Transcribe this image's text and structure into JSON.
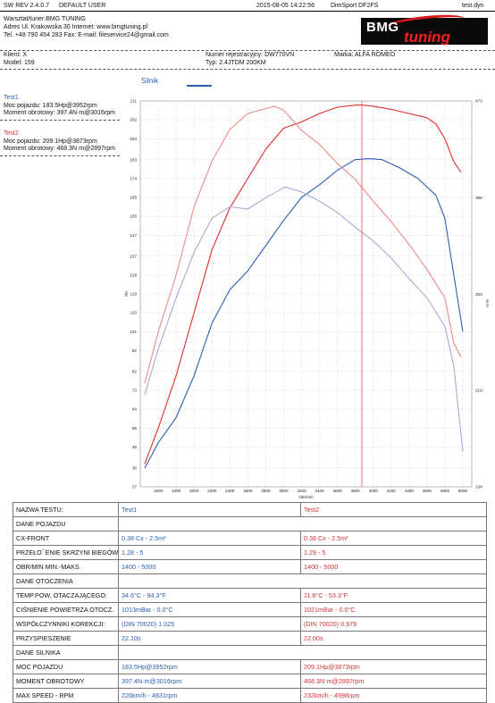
{
  "header": {
    "sw_rev": "SW REV 2.4.0.7",
    "user": "DEFAULT USER",
    "datetime": "2015-08-05 14:22:56",
    "dyno": "DimSport DF2FS",
    "file": "test.dyn",
    "workshop_line": "Warsztat/tuner:BMG TUNING",
    "address_line": "Adres Ul. Krakowska 30 Internet: www.bmgtuning.pl",
    "contact_line": "Tel. +48 790 454 283 Fax:  E-mail: fileservice24@gmail.com",
    "logo_main": "BMG",
    "logo_sub": "tuning"
  },
  "vehicle": {
    "client": "Klient: X",
    "model": "Model: 159",
    "reg": "Numer rejestracyjny: DW770VN",
    "type": "Typ: 2.4JTDM 200KM",
    "brand": "Marka: ALFA ROMEO"
  },
  "tab": {
    "label": "Silnik"
  },
  "tests": [
    {
      "name": "Test1",
      "power": "Moc pojazdu: 183.5Hp@3952rpm",
      "torque": "Moment obrotowy: 397.4N·m@3016rpm"
    },
    {
      "name": "Test2",
      "power": "Moc pojazdu: 209.1Hp@3873rpm",
      "torque": "Moment obrotowy: 468.3N·m@2897rpm"
    }
  ],
  "colors": {
    "test1": "#2a5fb4",
    "test2": "#e02c2c",
    "test1_torque": "#a9a9d6",
    "test2_torque": "#ee8a8a",
    "cursor": "#e85050"
  },
  "chart_data": {
    "type": "line",
    "xlabel": "Obr/min",
    "ylabel_left": "Hp",
    "ylabel_right": "N·m",
    "xlim": [
      1400,
      5100
    ],
    "x_ticks": [
      "1600",
      "1800",
      "2000",
      "2200",
      "2400",
      "2600",
      "2800",
      "3000",
      "3200",
      "3400",
      "3600",
      "3800",
      "4000",
      "4200",
      "4400",
      "4600",
      "4800",
      "5000"
    ],
    "ylim_left": [
      27,
      211
    ],
    "y_ticks_left": [
      "211",
      "202",
      "193",
      "183",
      "174",
      "165",
      "156",
      "147",
      "137",
      "128",
      "119",
      "110",
      "101",
      "92",
      "82",
      "73",
      "64",
      "55",
      "46",
      "36",
      "27"
    ],
    "ylim_right": [
      134,
      473
    ],
    "y_ticks_right": [
      "134",
      "219",
      "303",
      "388",
      "473"
    ],
    "cursor_rpm": 3873,
    "grid": true,
    "series": [
      {
        "name": "Test1",
        "quantity": "power",
        "x": [
          1450,
          1600,
          1800,
          2000,
          2200,
          2400,
          2600,
          2800,
          3000,
          3200,
          3400,
          3600,
          3800,
          3952,
          4100,
          4300,
          4500,
          4700,
          4800,
          4900,
          5000
        ],
        "y": [
          36,
          48,
          60,
          80,
          105,
          121,
          130,
          142,
          154,
          165,
          171,
          178,
          183,
          183.5,
          183,
          179,
          174,
          166,
          155,
          128,
          101
        ]
      },
      {
        "name": "Test2",
        "quantity": "power",
        "x": [
          1450,
          1600,
          1800,
          2000,
          2200,
          2400,
          2600,
          2800,
          3000,
          3200,
          3400,
          3600,
          3800,
          3873,
          4000,
          4200,
          4400,
          4600,
          4700,
          4800,
          4900,
          4980
        ],
        "y": [
          38,
          55,
          80,
          110,
          140,
          160,
          174,
          188,
          198,
          201,
          205,
          208,
          209,
          209.1,
          208.5,
          207,
          205,
          203,
          200,
          193,
          182,
          177
        ]
      },
      {
        "name": "Test1",
        "quantity": "torque",
        "x": [
          1450,
          1600,
          1800,
          2000,
          2200,
          2400,
          2600,
          2800,
          3016,
          3200,
          3400,
          3600,
          3800,
          4000,
          4200,
          4400,
          4600,
          4800,
          4900,
          5000
        ],
        "y": [
          215,
          255,
          300,
          340,
          370,
          380,
          378,
          388,
          397.4,
          393,
          385,
          375,
          362,
          350,
          335,
          317,
          300,
          275,
          240,
          165
        ]
      },
      {
        "name": "Test2",
        "quantity": "torque",
        "x": [
          1450,
          1600,
          1800,
          2000,
          2200,
          2400,
          2600,
          2897,
          3000,
          3200,
          3400,
          3600,
          3800,
          4000,
          4200,
          4400,
          4600,
          4800,
          4900,
          4980
        ],
        "y": [
          225,
          270,
          320,
          380,
          420,
          448,
          462,
          468.3,
          465,
          447,
          435,
          418,
          404,
          385,
          367,
          347,
          325,
          300,
          260,
          248
        ]
      }
    ]
  },
  "table": {
    "header": {
      "label": "NAZWA TESTU:",
      "t1": "Test1",
      "t2": "Test2"
    },
    "rows": [
      {
        "label": "DANE POJAZDU",
        "section": true
      },
      {
        "label": "CX-FRONT",
        "t1": "0.38 Cx - 2.5m²",
        "t2": "0.38 Cx - 2.5m²"
      },
      {
        "label": "PRZEŁO¯ENIE SKRZYNI BIEGÓW",
        "t1": "1.28 - 5",
        "t2": "1.29 - 5"
      },
      {
        "label": "OBR/MIN MIN.-MAKS.",
        "t1": "1400 - 5000",
        "t2": "1400 - 5000"
      },
      {
        "label": "DANE OTOCZENIA",
        "section": true
      },
      {
        "label": "TEMP.POW. OTACZAJĄCEGO:",
        "t1": "34.6°C - 94.3°F",
        "t2": "11.8°C - 53.3°F"
      },
      {
        "label": "CIŚNIENIE POWIETRZA OTOCZ.",
        "t1": "1013mBar - 0.0°C",
        "t2": "1021mBar - 0.0°C"
      },
      {
        "label": "WSPÓŁCZYNNIKI KOREKCJI:",
        "t1": "(DIN 70020) 1.025",
        "t2": "(DIN 70020) 0.979"
      },
      {
        "label": "PRZYSPIESZENIE",
        "t1": "22.10s",
        "t2": "22.00s"
      },
      {
        "label": "DANE SILNIKA",
        "section": true
      },
      {
        "label": "MOC POJAZDU",
        "t1": "183.5Hp@3952rpm",
        "t2": "209.1Hp@3873rpm"
      },
      {
        "label": "MOMENT OBROTOWY",
        "t1": "397.4N·m@3016rpm",
        "t2": "468.3N·m@2897rpm"
      },
      {
        "label": "MAX SPEED - RPM",
        "t1": "226km/h - 4831rpm",
        "t2": "232km/h - 4998rpm"
      }
    ]
  }
}
